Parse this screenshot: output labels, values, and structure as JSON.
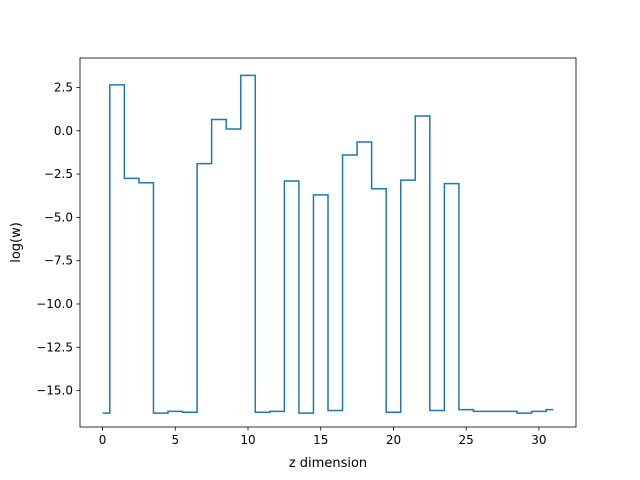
{
  "chart_data": {
    "type": "line",
    "step": "mid",
    "title": "",
    "xlabel": "z dimension",
    "ylabel": "log(w)",
    "xlim": [
      -1.55,
      32.55
    ],
    "ylim": [
      -17.1,
      4.2
    ],
    "xticks": [
      0,
      5,
      10,
      15,
      20,
      25,
      30
    ],
    "yticks": [
      -15.0,
      -12.5,
      -10.0,
      -7.5,
      -5.0,
      -2.5,
      0.0,
      2.5
    ],
    "xtick_labels": [
      "0",
      "5",
      "10",
      "15",
      "20",
      "25",
      "30"
    ],
    "ytick_labels": [
      "−15.0",
      "−12.5",
      "−10.0",
      "−7.5",
      "−5.0",
      "−2.5",
      "0.0",
      "2.5"
    ],
    "grid": false,
    "series": [
      {
        "color": "#1f77b4",
        "x": [
          0,
          1,
          2,
          3,
          4,
          5,
          6,
          7,
          8,
          9,
          10,
          11,
          12,
          13,
          14,
          15,
          16,
          17,
          18,
          19,
          20,
          21,
          22,
          23,
          24,
          25,
          26,
          27,
          28,
          29,
          30,
          31
        ],
        "values": [
          -16.3,
          2.65,
          -2.75,
          -3.0,
          -16.3,
          -16.2,
          -16.25,
          -1.9,
          0.65,
          0.1,
          3.2,
          -16.25,
          -16.2,
          -2.9,
          -16.3,
          -3.7,
          -16.15,
          -1.4,
          -0.65,
          -3.35,
          -16.25,
          -2.85,
          0.85,
          -16.15,
          -3.05,
          -16.1,
          -16.2,
          -16.2,
          -16.2,
          -16.3,
          -16.2,
          -16.1
        ]
      }
    ]
  }
}
